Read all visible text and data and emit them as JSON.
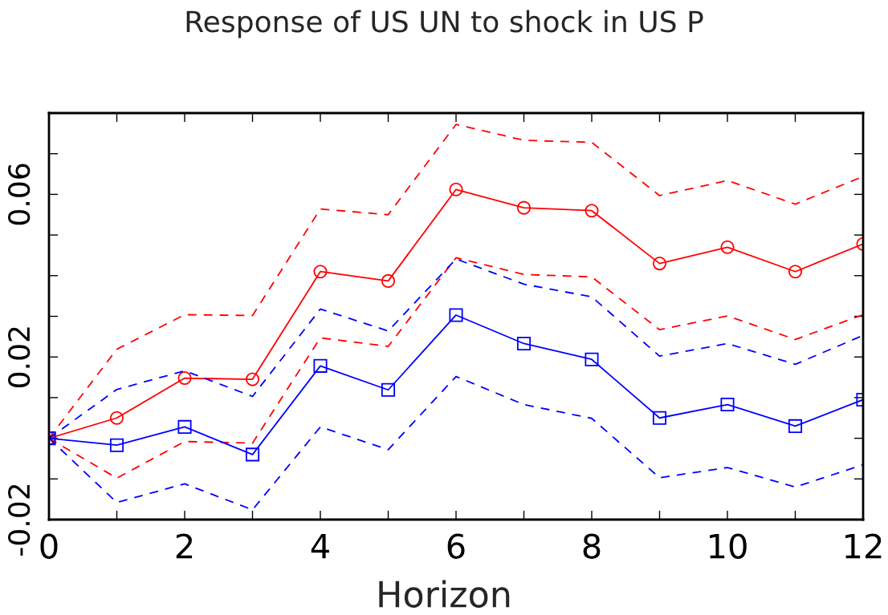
{
  "chart_data": {
    "type": "line",
    "title": "Response of US UN to shock in US P",
    "xlabel": "Horizon",
    "x": [
      0,
      1,
      2,
      3,
      4,
      5,
      6,
      7,
      8,
      9,
      10,
      11,
      12
    ],
    "series": [
      {
        "color": "#ff0000",
        "marker": "circle",
        "line_style": "solid",
        "values": [
          0,
          0.005,
          0.0148,
          0.0145,
          0.041,
          0.0387,
          0.0612,
          0.0567,
          0.056,
          0.043,
          0.047,
          0.041,
          0.0478
        ]
      },
      {
        "color": "#ff0000",
        "marker": "none",
        "line_style": "dashed",
        "values": [
          0,
          0.0219,
          0.0304,
          0.0302,
          0.0564,
          0.055,
          0.0772,
          0.0733,
          0.0728,
          0.0597,
          0.0634,
          0.0576,
          0.0644
        ]
      },
      {
        "color": "#ff0000",
        "marker": "none",
        "line_style": "dashed",
        "values": [
          0,
          -0.0098,
          -0.0008,
          -0.0012,
          0.0247,
          0.0226,
          0.0444,
          0.0403,
          0.0397,
          0.0267,
          0.0301,
          0.0243,
          0.0304
        ]
      },
      {
        "color": "#0000ff",
        "marker": "square",
        "line_style": "solid",
        "values": [
          0,
          -0.0017,
          0.0028,
          -0.004,
          0.0178,
          0.0119,
          0.0303,
          0.0233,
          0.0194,
          0.005,
          0.0083,
          0.003,
          0.0095
        ]
      },
      {
        "color": "#0000ff",
        "marker": "none",
        "line_style": "dashed",
        "values": [
          0,
          0.012,
          0.0166,
          0.0103,
          0.0318,
          0.0264,
          0.0441,
          0.0379,
          0.0348,
          0.0202,
          0.0233,
          0.0182,
          0.0253
        ]
      },
      {
        "color": "#0000ff",
        "marker": "none",
        "line_style": "dashed",
        "values": [
          0,
          -0.0158,
          -0.0112,
          -0.0176,
          0.0028,
          -0.0028,
          0.0152,
          0.0083,
          0.0049,
          -0.0097,
          -0.0072,
          -0.012,
          -0.0065
        ]
      }
    ],
    "xlim": [
      0,
      12
    ],
    "xticks": [
      0,
      {
        "value": 1,
        "label": null
      },
      2,
      {
        "value": 3,
        "label": null
      },
      4,
      {
        "value": 5,
        "label": null
      },
      6,
      {
        "value": 7,
        "label": null
      },
      8,
      {
        "value": 9,
        "label": null
      },
      10,
      {
        "value": 11,
        "label": null
      },
      12
    ],
    "ylim": [
      -0.02,
      0.08
    ],
    "yticks": [
      -0.02,
      {
        "value": -0.01,
        "label": null
      },
      {
        "value": 0,
        "label": null
      },
      {
        "value": 0.01,
        "label": null
      },
      {
        "value": 0.02,
        "label": "0.02"
      },
      {
        "value": 0.03,
        "label": null
      },
      {
        "value": 0.04,
        "label": null
      },
      {
        "value": 0.05,
        "label": null
      },
      {
        "value": 0.06,
        "label": "0.06"
      },
      {
        "value": 0.07,
        "label": null
      }
    ],
    "grid": false,
    "legend": false
  }
}
